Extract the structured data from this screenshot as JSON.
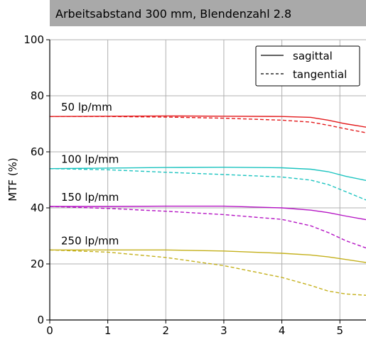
{
  "chart_data": {
    "type": "line",
    "title": "Arbeitsabstand 300 mm, Blendenzahl 2.8",
    "ylabel": "MTF (%)",
    "xlabel": "",
    "xlim": [
      0,
      5.45
    ],
    "ylim": [
      0,
      100
    ],
    "xticks": [
      0,
      1,
      2,
      3,
      4,
      5
    ],
    "yticks": [
      0,
      20,
      40,
      60,
      80,
      100
    ],
    "grid": true,
    "legend_position": "top-right",
    "legend": [
      {
        "label": "sagittal",
        "style": "solid"
      },
      {
        "label": "tangential",
        "style": "dashed"
      }
    ],
    "groups": [
      {
        "label": "50 lp/mm",
        "color": "#e31a1c",
        "sagittal": [
          [
            0,
            72.6
          ],
          [
            1,
            72.7
          ],
          [
            2,
            72.8
          ],
          [
            3,
            72.7
          ],
          [
            4,
            72.6
          ],
          [
            4.5,
            72.3
          ],
          [
            4.8,
            71.3
          ],
          [
            5.1,
            70.0
          ],
          [
            5.45,
            68.8
          ]
        ],
        "tangential": [
          [
            0,
            72.6
          ],
          [
            1,
            72.6
          ],
          [
            2,
            72.4
          ],
          [
            3,
            72.0
          ],
          [
            4,
            71.3
          ],
          [
            4.5,
            70.6
          ],
          [
            4.8,
            69.5
          ],
          [
            5.1,
            68.2
          ],
          [
            5.45,
            66.8
          ]
        ]
      },
      {
        "label": "100 lp/mm",
        "color": "#1dc4c0",
        "sagittal": [
          [
            0,
            54.0
          ],
          [
            1,
            54.2
          ],
          [
            2,
            54.4
          ],
          [
            3,
            54.5
          ],
          [
            4,
            54.3
          ],
          [
            4.5,
            53.8
          ],
          [
            4.8,
            52.9
          ],
          [
            5.1,
            51.3
          ],
          [
            5.45,
            49.8
          ]
        ],
        "tangential": [
          [
            0,
            54.0
          ],
          [
            1,
            53.6
          ],
          [
            2,
            52.7
          ],
          [
            3,
            51.9
          ],
          [
            4,
            51.0
          ],
          [
            4.5,
            49.9
          ],
          [
            4.8,
            48.3
          ],
          [
            5.1,
            45.8
          ],
          [
            5.45,
            42.8
          ]
        ]
      },
      {
        "label": "150 lp/mm",
        "color": "#b515c4",
        "sagittal": [
          [
            0,
            40.5
          ],
          [
            1,
            40.5
          ],
          [
            2,
            40.6
          ],
          [
            3,
            40.6
          ],
          [
            4,
            40.0
          ],
          [
            4.5,
            39.2
          ],
          [
            4.8,
            38.3
          ],
          [
            5.1,
            37.1
          ],
          [
            5.45,
            35.8
          ]
        ],
        "tangential": [
          [
            0,
            40.5
          ],
          [
            1,
            39.8
          ],
          [
            2,
            38.8
          ],
          [
            3,
            37.6
          ],
          [
            4,
            35.9
          ],
          [
            4.5,
            33.6
          ],
          [
            4.8,
            31.2
          ],
          [
            5.1,
            28.3
          ],
          [
            5.45,
            25.7
          ]
        ]
      },
      {
        "label": "250 lp/mm",
        "color": "#c4b01b",
        "sagittal": [
          [
            0,
            25.0
          ],
          [
            1,
            25.0
          ],
          [
            2,
            25.0
          ],
          [
            3,
            24.6
          ],
          [
            4,
            23.8
          ],
          [
            4.5,
            23.2
          ],
          [
            4.8,
            22.5
          ],
          [
            5.1,
            21.6
          ],
          [
            5.45,
            20.5
          ]
        ],
        "tangential": [
          [
            0,
            25.0
          ],
          [
            1,
            24.2
          ],
          [
            2,
            22.3
          ],
          [
            3,
            19.4
          ],
          [
            4,
            15.2
          ],
          [
            4.5,
            12.3
          ],
          [
            4.8,
            10.3
          ],
          [
            5.1,
            9.3
          ],
          [
            5.45,
            8.8
          ]
        ]
      }
    ]
  }
}
